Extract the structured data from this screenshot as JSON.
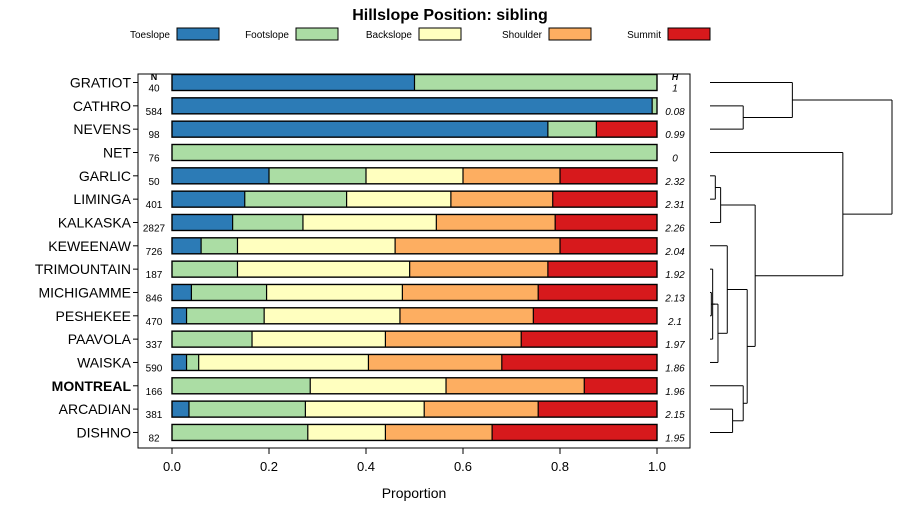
{
  "chart_data": {
    "type": "bar",
    "subtype": "stacked-horizontal-proportion",
    "title": "Hillslope Position: sibling",
    "xlabel": "Proportion",
    "ylabel": "",
    "xlim": [
      0,
      1
    ],
    "x_ticks": [
      "0.0",
      "0.2",
      "0.4",
      "0.6",
      "0.8",
      "1.0"
    ],
    "legend_position": "top",
    "n_header": "N",
    "h_header": "H",
    "highlighted_category": "MONTREAL",
    "series": [
      {
        "name": "Toeslope",
        "color": "#2c7bb6"
      },
      {
        "name": "Footslope",
        "color": "#abdda4"
      },
      {
        "name": "Backslope",
        "color": "#ffffbf"
      },
      {
        "name": "Shoulder",
        "color": "#fdae61"
      },
      {
        "name": "Summit",
        "color": "#d7191c"
      }
    ],
    "categories": [
      {
        "label": "GRATIOT",
        "n": "40",
        "h": "1",
        "values": [
          0.5,
          0.5,
          0,
          0,
          0
        ]
      },
      {
        "label": "CATHRO",
        "n": "584",
        "h": "0.08",
        "values": [
          0.99,
          0.01,
          0,
          0,
          0
        ]
      },
      {
        "label": "NEVENS",
        "n": "98",
        "h": "0.99",
        "values": [
          0.775,
          0.1,
          0,
          0,
          0.125
        ]
      },
      {
        "label": "NET",
        "n": "76",
        "h": "0",
        "values": [
          0,
          1.0,
          0,
          0,
          0
        ]
      },
      {
        "label": "GARLIC",
        "n": "50",
        "h": "2.32",
        "values": [
          0.2,
          0.2,
          0.2,
          0.2,
          0.2
        ]
      },
      {
        "label": "LIMINGA",
        "n": "401",
        "h": "2.31",
        "values": [
          0.15,
          0.21,
          0.215,
          0.21,
          0.215
        ]
      },
      {
        "label": "KALKASKA",
        "n": "2827",
        "h": "2.26",
        "values": [
          0.125,
          0.145,
          0.275,
          0.245,
          0.21
        ]
      },
      {
        "label": "KEWEENAW",
        "n": "726",
        "h": "2.04",
        "values": [
          0.06,
          0.075,
          0.325,
          0.34,
          0.2
        ]
      },
      {
        "label": "TRIMOUNTAIN",
        "n": "187",
        "h": "1.92",
        "values": [
          0,
          0.135,
          0.355,
          0.285,
          0.225
        ]
      },
      {
        "label": "MICHIGAMME",
        "n": "846",
        "h": "2.13",
        "values": [
          0.04,
          0.155,
          0.28,
          0.28,
          0.245
        ]
      },
      {
        "label": "PESHEKEE",
        "n": "470",
        "h": "2.1",
        "values": [
          0.03,
          0.16,
          0.28,
          0.275,
          0.255
        ]
      },
      {
        "label": "PAAVOLA",
        "n": "337",
        "h": "1.97",
        "values": [
          0,
          0.165,
          0.275,
          0.28,
          0.28
        ]
      },
      {
        "label": "WAISKA",
        "n": "590",
        "h": "1.86",
        "values": [
          0.03,
          0.025,
          0.35,
          0.275,
          0.32
        ]
      },
      {
        "label": "MONTREAL",
        "n": "166",
        "h": "1.96",
        "values": [
          0,
          0.285,
          0.28,
          0.285,
          0.15
        ]
      },
      {
        "label": "ARCADIAN",
        "n": "381",
        "h": "2.15",
        "values": [
          0.035,
          0.24,
          0.245,
          0.235,
          0.245
        ]
      },
      {
        "label": "DISHNO",
        "n": "82",
        "h": "1.95",
        "values": [
          0,
          0.28,
          0.16,
          0.22,
          0.34
        ]
      }
    ],
    "dendrogram": {
      "leaf_order": [
        "GRATIOT",
        "CATHRO",
        "NEVENS",
        "NET",
        "GARLIC",
        "LIMINGA",
        "KALKASKA",
        "KEWEENAW",
        "TRIMOUNTAIN",
        "MICHIGAMME",
        "PESHEKEE",
        "PAAVOLA",
        "WAISKA",
        "MONTREAL",
        "ARCADIAN",
        "DISHNO"
      ],
      "merges": [
        {
          "a": "CATHRO",
          "b": "NEVENS",
          "height": 0.25
        },
        {
          "a": "GRATIOT",
          "b": "m0",
          "height": 0.62
        },
        {
          "a": "GARLIC",
          "b": "LIMINGA",
          "height": 0.04
        },
        {
          "a": "m2",
          "b": "KALKASKA",
          "height": 0.08
        },
        {
          "a": "MICHIGAMME",
          "b": "PESHEKEE",
          "height": 0.01
        },
        {
          "a": "TRIMOUNTAIN",
          "b": "PAAVOLA",
          "height": 0.02
        },
        {
          "a": "m4",
          "b": "m5",
          "height": 0.04
        },
        {
          "a": "m6",
          "b": "WAISKA",
          "height": 0.06
        },
        {
          "a": "KEWEENAW",
          "b": "m7",
          "height": 0.13
        },
        {
          "a": "ARCADIAN",
          "b": "DISHNO",
          "height": 0.17
        },
        {
          "a": "MONTREAL",
          "b": "m9",
          "height": 0.25
        },
        {
          "a": "m8",
          "b": "m10",
          "height": 0.28
        },
        {
          "a": "m3",
          "b": "m11",
          "height": 0.34
        },
        {
          "a": "NET",
          "b": "m12",
          "height": 1.0
        },
        {
          "a": "m1",
          "b": "m13",
          "height": 1.37
        }
      ]
    }
  }
}
